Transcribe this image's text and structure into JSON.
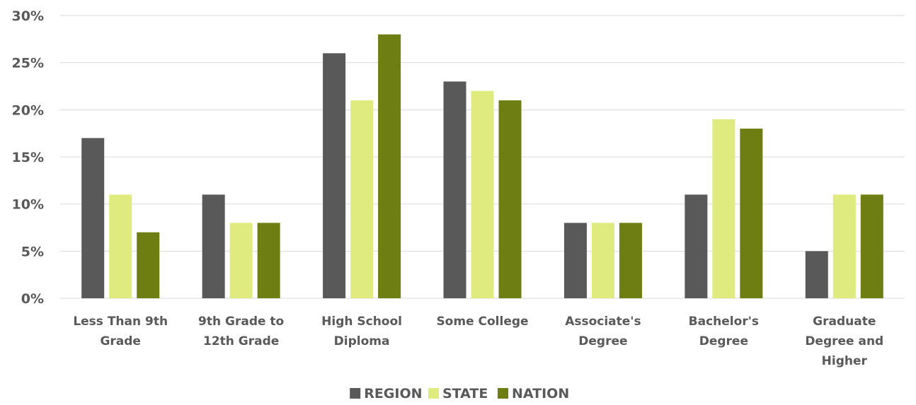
{
  "chart_data": {
    "type": "bar",
    "categories": [
      [
        "Less Than 9th",
        "Grade"
      ],
      [
        "9th Grade to",
        "12th Grade"
      ],
      [
        "High School",
        "Diploma"
      ],
      [
        "Some College"
      ],
      [
        "Associate's",
        "Degree"
      ],
      [
        "Bachelor's",
        "Degree"
      ],
      [
        "Graduate",
        "Degree and",
        "Higher"
      ]
    ],
    "series": [
      {
        "name": "REGION",
        "color": "#595959",
        "values": [
          17,
          11,
          26,
          23,
          8,
          11,
          5
        ]
      },
      {
        "name": "STATE",
        "color": "#e0eb7f",
        "values": [
          11,
          8,
          21,
          22,
          8,
          19,
          11
        ]
      },
      {
        "name": "NATION",
        "color": "#6f7e12",
        "values": [
          7,
          8,
          28,
          21,
          8,
          18,
          11
        ]
      }
    ],
    "yticks": [
      "0%",
      "5%",
      "10%",
      "15%",
      "20%",
      "25%",
      "30%"
    ],
    "ytick_values": [
      0,
      5,
      10,
      15,
      20,
      25,
      30
    ],
    "ylim": [
      0,
      30
    ],
    "grid": true,
    "legend_position": "bottom"
  }
}
